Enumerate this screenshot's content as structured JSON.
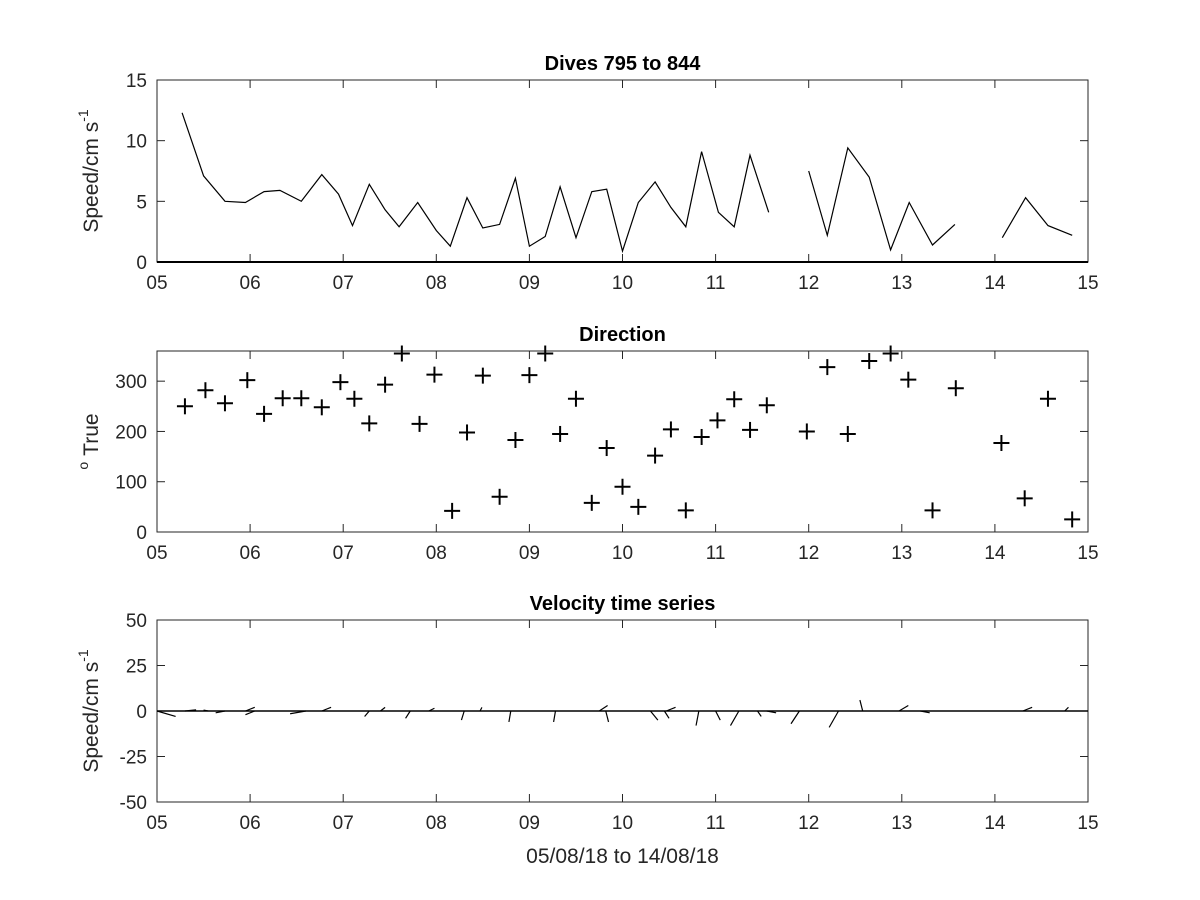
{
  "chart_data": [
    {
      "type": "line",
      "title": "Dives 795 to 844",
      "ylabel": "Speed/cm s",
      "ylabel_sup": "-1",
      "xlabel": "",
      "xlim": [
        5,
        15
      ],
      "ylim": [
        0,
        15
      ],
      "xticks": [
        "05",
        "06",
        "07",
        "08",
        "09",
        "10",
        "11",
        "12",
        "13",
        "14",
        "15"
      ],
      "yticks": [
        "0",
        "5",
        "10",
        "15"
      ],
      "series": [
        {
          "x": [
            5.27,
            5.5,
            5.73,
            5.95,
            6.15,
            6.32,
            6.55,
            6.77,
            6.95,
            7.1,
            7.28,
            7.45,
            7.6,
            7.8,
            8.0,
            8.15,
            8.33,
            8.5,
            8.68,
            8.85,
            9.0,
            9.17,
            9.33,
            9.5,
            9.67,
            9.83,
            10.0,
            10.17,
            10.35,
            10.52,
            10.68,
            10.85,
            11.03,
            11.2,
            11.37,
            11.57
          ],
          "y": [
            12.3,
            7.1,
            5.0,
            4.9,
            5.8,
            5.9,
            5.0,
            7.2,
            5.6,
            3.0,
            6.4,
            4.3,
            2.9,
            4.9,
            2.6,
            1.3,
            5.3,
            2.8,
            3.1,
            6.9,
            1.3,
            2.1,
            6.2,
            2.0,
            5.8,
            6.0,
            0.9,
            4.9,
            6.6,
            4.5,
            2.9,
            9.1,
            4.1,
            2.9,
            8.8,
            4.1
          ]
        },
        {
          "x": [
            12.0,
            12.2,
            12.42,
            12.65,
            12.88,
            13.08,
            13.33,
            13.57
          ],
          "y": [
            7.5,
            2.2,
            9.4,
            7.0,
            1.0,
            4.9,
            1.4,
            3.1
          ]
        },
        {
          "x": [
            14.08,
            14.33,
            14.57,
            14.83
          ],
          "y": [
            2.0,
            5.3,
            3.0,
            2.2
          ]
        }
      ]
    },
    {
      "type": "scatter",
      "title": "Direction",
      "ylabel": "True",
      "ylabel_sup": "o",
      "xlabel": "",
      "marker": "+",
      "xlim": [
        5,
        15
      ],
      "ylim": [
        0,
        360
      ],
      "xticks": [
        "05",
        "06",
        "07",
        "08",
        "09",
        "10",
        "11",
        "12",
        "13",
        "14",
        "15"
      ],
      "yticks": [
        "0",
        "100",
        "200",
        "300"
      ],
      "points": {
        "x": [
          5.3,
          5.52,
          5.73,
          5.97,
          6.15,
          6.35,
          6.55,
          6.77,
          6.97,
          7.12,
          7.28,
          7.45,
          7.63,
          7.82,
          7.98,
          8.17,
          8.33,
          8.5,
          8.68,
          8.85,
          9.0,
          9.17,
          9.33,
          9.5,
          9.67,
          9.83,
          10.0,
          10.17,
          10.35,
          10.52,
          10.68,
          10.85,
          11.02,
          11.2,
          11.37,
          11.55,
          11.98,
          12.2,
          12.42,
          12.65,
          12.88,
          13.07,
          13.33,
          13.58,
          14.07,
          14.32,
          14.57,
          14.83
        ],
        "y": [
          250,
          282,
          256,
          302,
          235,
          266,
          266,
          248,
          298,
          265,
          216,
          293,
          355,
          215,
          313,
          42,
          198,
          311,
          70,
          183,
          312,
          355,
          195,
          265,
          58,
          167,
          90,
          50,
          152,
          204,
          43,
          189,
          222,
          264,
          203,
          252,
          200,
          328,
          195,
          340,
          355,
          303,
          43,
          286,
          177,
          67,
          265,
          25
        ]
      }
    },
    {
      "type": "quiver",
      "title": "Velocity time series",
      "ylabel": "Speed/cm s",
      "ylabel_sup": "-1",
      "xlabel": "05/08/18 to 14/08/18",
      "xlim": [
        5,
        15
      ],
      "ylim": [
        -50,
        50
      ],
      "xticks": [
        "05",
        "06",
        "07",
        "08",
        "09",
        "10",
        "11",
        "12",
        "13",
        "14",
        "15"
      ],
      "yticks": [
        "-50",
        "-25",
        "0",
        "25",
        "50"
      ],
      "vectors": [
        {
          "t": 5.0,
          "du": 0.2,
          "dv": -3
        },
        {
          "t": 5.3,
          "du": 0.12,
          "dv": 0.6
        },
        {
          "t": 5.55,
          "du": -0.05,
          "dv": 0.5
        },
        {
          "t": 5.73,
          "du": -0.1,
          "dv": -1
        },
        {
          "t": 5.95,
          "du": 0.1,
          "dv": 2
        },
        {
          "t": 6.05,
          "du": -0.1,
          "dv": -2
        },
        {
          "t": 6.6,
          "du": -0.17,
          "dv": -1.5
        },
        {
          "t": 6.77,
          "du": 0.1,
          "dv": 2
        },
        {
          "t": 7.28,
          "du": -0.05,
          "dv": -3
        },
        {
          "t": 7.4,
          "du": 0.05,
          "dv": 2
        },
        {
          "t": 7.72,
          "du": -0.05,
          "dv": -4
        },
        {
          "t": 7.92,
          "du": 0.06,
          "dv": 1.5
        },
        {
          "t": 8.3,
          "du": -0.03,
          "dv": -5
        },
        {
          "t": 8.47,
          "du": 0.02,
          "dv": 2
        },
        {
          "t": 8.8,
          "du": -0.02,
          "dv": -6
        },
        {
          "t": 9.28,
          "du": -0.02,
          "dv": -6
        },
        {
          "t": 9.75,
          "du": 0.09,
          "dv": 3
        },
        {
          "t": 9.82,
          "du": 0.03,
          "dv": -6
        },
        {
          "t": 10.3,
          "du": 0.08,
          "dv": -5
        },
        {
          "t": 10.45,
          "du": 0.05,
          "dv": -4
        },
        {
          "t": 10.47,
          "du": 0.1,
          "dv": 2
        },
        {
          "t": 10.82,
          "du": -0.03,
          "dv": -8
        },
        {
          "t": 11.0,
          "du": 0.05,
          "dv": -5
        },
        {
          "t": 11.25,
          "du": -0.09,
          "dv": -8
        },
        {
          "t": 11.45,
          "du": 0.04,
          "dv": -3
        },
        {
          "t": 11.55,
          "du": 0.1,
          "dv": -1
        },
        {
          "t": 11.9,
          "du": -0.09,
          "dv": -7
        },
        {
          "t": 12.32,
          "du": -0.1,
          "dv": -9
        },
        {
          "t": 12.58,
          "du": -0.03,
          "dv": 6
        },
        {
          "t": 12.97,
          "du": 0.1,
          "dv": 3
        },
        {
          "t": 13.2,
          "du": 0.1,
          "dv": -1
        },
        {
          "t": 14.3,
          "du": 0.1,
          "dv": 2
        },
        {
          "t": 14.75,
          "du": 0.04,
          "dv": 2
        }
      ]
    }
  ]
}
